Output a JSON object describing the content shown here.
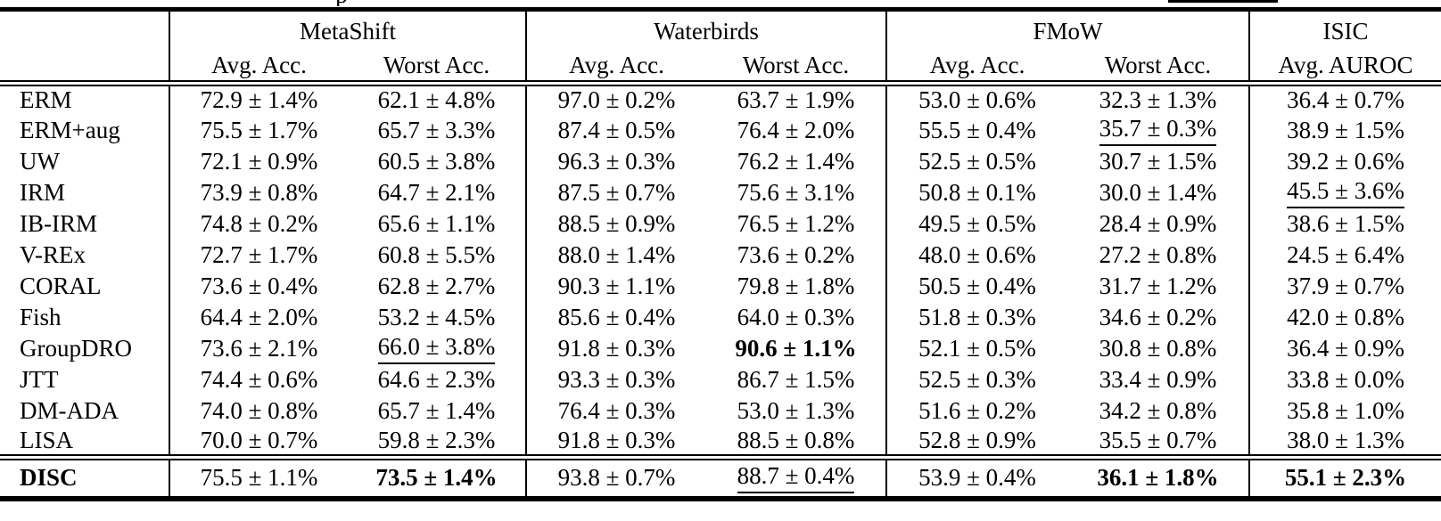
{
  "caption_fragment": {
    "partial_text": "p"
  },
  "table": {
    "groups": [
      {
        "label": "MetaShift",
        "sub": [
          "Avg. Acc.",
          "Worst Acc."
        ]
      },
      {
        "label": "Waterbirds",
        "sub": [
          "Avg. Acc.",
          "Worst Acc."
        ]
      },
      {
        "label": "FMoW",
        "sub": [
          "Avg. Acc.",
          "Worst Acc."
        ]
      },
      {
        "label": "ISIC",
        "sub": [
          "Avg. AUROC"
        ]
      }
    ],
    "rows": [
      {
        "method": "ERM",
        "bold": false,
        "cells": [
          {
            "t": "72.9 ± 1.4%"
          },
          {
            "t": "62.1 ± 4.8%"
          },
          {
            "t": "97.0 ± 0.2%"
          },
          {
            "t": "63.7 ± 1.9%"
          },
          {
            "t": "53.0 ± 0.6%"
          },
          {
            "t": "32.3 ± 1.3%"
          },
          {
            "t": "36.4 ± 0.7%"
          }
        ]
      },
      {
        "method": "ERM+aug",
        "bold": false,
        "cells": [
          {
            "t": "75.5 ± 1.7%"
          },
          {
            "t": "65.7 ± 3.3%"
          },
          {
            "t": "87.4 ± 0.5%"
          },
          {
            "t": "76.4 ± 2.0%"
          },
          {
            "t": "55.5 ± 0.4%"
          },
          {
            "t": "35.7 ± 0.3%",
            "u": true
          },
          {
            "t": "38.9 ± 1.5%"
          }
        ]
      },
      {
        "method": "UW",
        "bold": false,
        "cells": [
          {
            "t": "72.1 ± 0.9%"
          },
          {
            "t": "60.5 ± 3.8%"
          },
          {
            "t": "96.3 ± 0.3%"
          },
          {
            "t": "76.2 ± 1.4%"
          },
          {
            "t": "52.5 ± 0.5%"
          },
          {
            "t": "30.7 ± 1.5%"
          },
          {
            "t": "39.2 ± 0.6%"
          }
        ]
      },
      {
        "method": "IRM",
        "bold": false,
        "cells": [
          {
            "t": "73.9 ± 0.8%"
          },
          {
            "t": "64.7 ± 2.1%"
          },
          {
            "t": "87.5 ± 0.7%"
          },
          {
            "t": "75.6 ± 3.1%"
          },
          {
            "t": "50.8 ± 0.1%"
          },
          {
            "t": "30.0 ± 1.4%"
          },
          {
            "t": "45.5 ± 3.6%",
            "u": true
          }
        ]
      },
      {
        "method": "IB-IRM",
        "bold": false,
        "cells": [
          {
            "t": "74.8 ± 0.2%"
          },
          {
            "t": "65.6 ± 1.1%"
          },
          {
            "t": "88.5 ± 0.9%"
          },
          {
            "t": "76.5 ± 1.2%"
          },
          {
            "t": "49.5 ± 0.5%"
          },
          {
            "t": "28.4 ± 0.9%"
          },
          {
            "t": "38.6 ± 1.5%"
          }
        ]
      },
      {
        "method": "V-REx",
        "bold": false,
        "cells": [
          {
            "t": "72.7 ± 1.7%"
          },
          {
            "t": "60.8 ± 5.5%"
          },
          {
            "t": "88.0 ± 1.4%"
          },
          {
            "t": "73.6 ± 0.2%"
          },
          {
            "t": "48.0 ± 0.6%"
          },
          {
            "t": "27.2 ± 0.8%"
          },
          {
            "t": "24.5 ± 6.4%"
          }
        ]
      },
      {
        "method": "CORAL",
        "bold": false,
        "cells": [
          {
            "t": "73.6 ± 0.4%"
          },
          {
            "t": "62.8 ± 2.7%"
          },
          {
            "t": "90.3 ± 1.1%"
          },
          {
            "t": "79.8 ± 1.8%"
          },
          {
            "t": "50.5 ± 0.4%"
          },
          {
            "t": "31.7 ± 1.2%"
          },
          {
            "t": "37.9 ± 0.7%"
          }
        ]
      },
      {
        "method": "Fish",
        "bold": false,
        "cells": [
          {
            "t": "64.4 ± 2.0%"
          },
          {
            "t": "53.2 ± 4.5%"
          },
          {
            "t": "85.6 ± 0.4%"
          },
          {
            "t": "64.0 ± 0.3%"
          },
          {
            "t": "51.8 ± 0.3%"
          },
          {
            "t": "34.6 ± 0.2%"
          },
          {
            "t": "42.0 ± 0.8%"
          }
        ]
      },
      {
        "method": "GroupDRO",
        "bold": false,
        "cells": [
          {
            "t": "73.6 ± 2.1%"
          },
          {
            "t": "66.0 ± 3.8%",
            "u": true
          },
          {
            "t": "91.8 ± 0.3%"
          },
          {
            "t": "90.6 ± 1.1%",
            "b": true
          },
          {
            "t": "52.1 ± 0.5%"
          },
          {
            "t": "30.8 ± 0.8%"
          },
          {
            "t": "36.4 ± 0.9%"
          }
        ]
      },
      {
        "method": "JTT",
        "bold": false,
        "cells": [
          {
            "t": "74.4 ± 0.6%"
          },
          {
            "t": "64.6 ± 2.3%"
          },
          {
            "t": "93.3 ± 0.3%"
          },
          {
            "t": "86.7 ± 1.5%"
          },
          {
            "t": "52.5 ± 0.3%"
          },
          {
            "t": "33.4 ± 0.9%"
          },
          {
            "t": "33.8 ± 0.0%"
          }
        ]
      },
      {
        "method": "DM-ADA",
        "bold": false,
        "cells": [
          {
            "t": "74.0 ± 0.8%"
          },
          {
            "t": "65.7 ± 1.4%"
          },
          {
            "t": "76.4 ± 0.3%"
          },
          {
            "t": "53.0 ± 1.3%"
          },
          {
            "t": "51.6 ± 0.2%"
          },
          {
            "t": "34.2 ± 0.8%"
          },
          {
            "t": "35.8 ± 1.0%"
          }
        ]
      },
      {
        "method": "LISA",
        "bold": false,
        "cells": [
          {
            "t": "70.0 ± 0.7%"
          },
          {
            "t": "59.8 ± 2.3%"
          },
          {
            "t": "91.8 ± 0.3%"
          },
          {
            "t": "88.5 ± 0.8%"
          },
          {
            "t": "52.8 ± 0.9%"
          },
          {
            "t": "35.5 ± 0.7%"
          },
          {
            "t": "38.0 ± 1.3%"
          }
        ]
      }
    ],
    "disc_row": {
      "method": "DISC",
      "bold": true,
      "cells": [
        {
          "t": "75.5 ± 1.1%"
        },
        {
          "t": "73.5 ± 1.4%",
          "b": true
        },
        {
          "t": "93.8 ± 0.7%"
        },
        {
          "t": "88.7 ± 0.4%",
          "u": true
        },
        {
          "t": "53.9 ± 0.4%"
        },
        {
          "t": "36.1 ± 1.8%",
          "b": true
        },
        {
          "t": "55.1 ± 2.3%",
          "b": true
        }
      ]
    }
  }
}
